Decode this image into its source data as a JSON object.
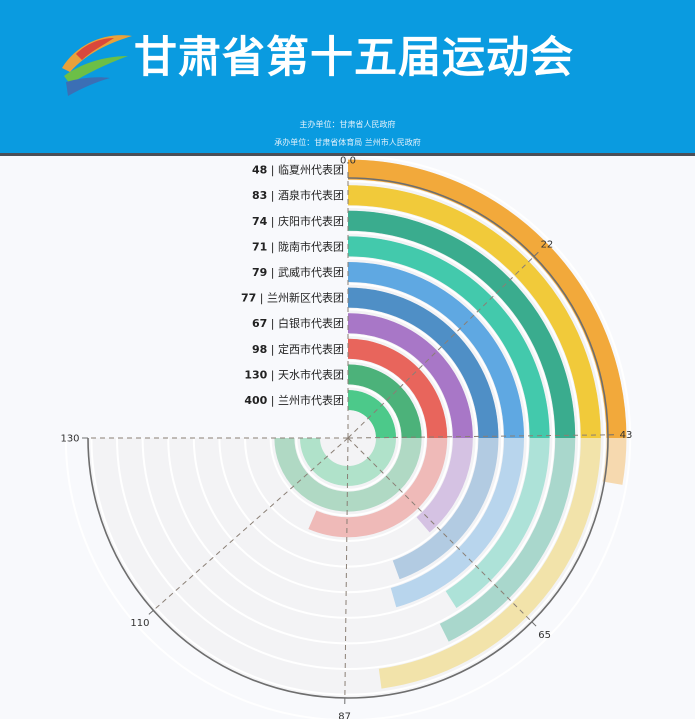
{
  "header": {
    "title": "甘肃省第十五届运动会",
    "host_line": "主办单位：甘肃省人民政府",
    "organizer_line": "承办单位：甘肃省体育局   兰州市人民政府"
  },
  "colors": {
    "banner": "#0a9be0",
    "series": [
      "#4cc98a",
      "#4cb27a",
      "#e8655c",
      "#a877c7",
      "#4f8fc6",
      "#5fa8e2",
      "#43c9ac",
      "#3aac8e",
      "#f1ca3a",
      "#f2a93b"
    ]
  },
  "chart_data": {
    "type": "polar-bar",
    "angle_axis": {
      "min": 0,
      "max": 130,
      "ticks": [
        0.0,
        22,
        43,
        65,
        87,
        110,
        130
      ],
      "tick_labels": [
        "0.0",
        "22",
        "43",
        "65",
        "87",
        "110",
        "130"
      ],
      "start_angle_deg": 90,
      "end_angle_deg": -180
    },
    "categories": [
      "兰州市代表团",
      "天水市代表团",
      "定西市代表团",
      "白银市代表团",
      "兰州新区代表团",
      "武威市代表团",
      "陇南市代表团",
      "庆阳市代表团",
      "酒泉市代表团",
      "临夏州代表团"
    ],
    "values": [
      400,
      130,
      98,
      67,
      77,
      79,
      71,
      74,
      83,
      48
    ],
    "labels": [
      "400 | 兰州市代表团",
      "130 | 天水市代表团",
      "98 | 定西市代表团",
      "67 | 白银市代表团",
      "77 | 兰州新区代表团",
      "79 | 武威市代表团",
      "71 | 陇南市代表团",
      "74 | 庆阳市代表团",
      "83 | 酒泉市代表团",
      "48 | 临夏州代表团"
    ]
  }
}
